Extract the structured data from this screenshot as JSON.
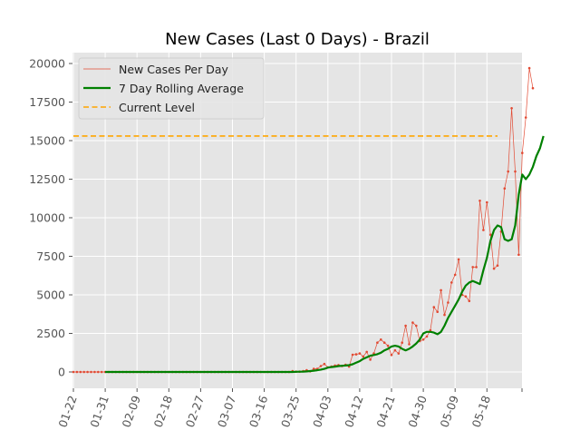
{
  "chart_data": {
    "type": "line",
    "title": "New Cases (Last 0 Days) - Brazil",
    "xlabel": "",
    "ylabel": "",
    "ylim": [
      -1000,
      21000
    ],
    "grid": true,
    "legend_position": "top-left",
    "x_tick_labels": [
      "01-22",
      "01-31",
      "02-09",
      "02-18",
      "02-27",
      "03-07",
      "03-16",
      "03-25",
      "04-03",
      "04-12",
      "04-21",
      "04-30",
      "05-09",
      "05-18"
    ],
    "y_ticks": [
      0,
      2500,
      5000,
      7500,
      10000,
      12500,
      15000,
      17500,
      20000
    ],
    "y_tick_labels": [
      "0",
      "2500",
      "5000",
      "7500",
      "10000",
      "12500",
      "15000",
      "17500",
      "20000"
    ],
    "series": [
      {
        "name": "New Cases Per Day",
        "color": "#e24a33",
        "style": "thin-line-with-markers",
        "x_start": "01-22",
        "x_step_days": 1,
        "values": [
          0,
          0,
          0,
          0,
          0,
          0,
          0,
          0,
          0,
          0,
          0,
          0,
          0,
          0,
          0,
          0,
          0,
          0,
          0,
          0,
          0,
          0,
          0,
          0,
          0,
          0,
          0,
          0,
          0,
          0,
          0,
          0,
          0,
          0,
          0,
          0,
          0,
          0,
          0,
          0,
          0,
          0,
          0,
          0,
          0,
          0,
          0,
          0,
          0,
          0,
          0,
          0,
          0,
          0,
          0,
          0,
          0,
          0,
          0,
          0,
          0,
          0,
          50,
          20,
          20,
          50,
          120,
          40,
          200,
          200,
          380,
          520,
          300,
          350,
          420,
          450,
          380,
          470,
          350,
          1120,
          1140,
          1200,
          1000,
          1300,
          800,
          1200,
          1900,
          2100,
          1900,
          1700,
          1100,
          1400,
          1200,
          1900,
          3000,
          1800,
          3200,
          3000,
          2000,
          2100,
          2300,
          2700,
          4200,
          3900,
          5300,
          3700,
          4500,
          5800,
          6300,
          7300,
          5000,
          4900,
          4600,
          6800,
          6800,
          11100,
          9200,
          11000,
          8900,
          6700,
          6900,
          9100,
          11900,
          13000,
          17100,
          13000,
          7600,
          14200,
          16500,
          19700,
          18400
        ]
      },
      {
        "name": "7 Day Rolling Average",
        "color": "#008000",
        "style": "thick-line",
        "x_start": "01-31",
        "x_step_days": 1,
        "values": [
          0,
          0,
          0,
          0,
          0,
          0,
          0,
          0,
          0,
          0,
          0,
          0,
          0,
          0,
          0,
          0,
          0,
          0,
          0,
          0,
          0,
          0,
          0,
          0,
          0,
          0,
          0,
          0,
          0,
          0,
          0,
          0,
          0,
          0,
          0,
          0,
          0,
          0,
          0,
          0,
          0,
          0,
          0,
          0,
          0,
          0,
          0,
          0,
          0,
          0,
          0,
          0,
          0,
          0,
          10,
          20,
          25,
          35,
          60,
          80,
          110,
          150,
          200,
          280,
          320,
          340,
          380,
          400,
          420,
          440,
          500,
          600,
          700,
          850,
          950,
          1050,
          1100,
          1150,
          1250,
          1400,
          1500,
          1650,
          1700,
          1650,
          1500,
          1400,
          1500,
          1650,
          1850,
          2100,
          2500,
          2600,
          2600,
          2550,
          2450,
          2600,
          3000,
          3500,
          3900,
          4300,
          4700,
          5200,
          5600,
          5800,
          5900,
          5800,
          5700,
          6600,
          7400,
          8500,
          9200,
          9500,
          9400,
          8600,
          8500,
          8600,
          9500,
          11500,
          12800,
          12500,
          12800,
          13300,
          14000,
          14500,
          15300
        ]
      },
      {
        "name": "Current Level",
        "color": "#ffa500",
        "style": "dashed",
        "level": 15300,
        "x_range": [
          "01-22",
          "05-21"
        ]
      }
    ]
  }
}
